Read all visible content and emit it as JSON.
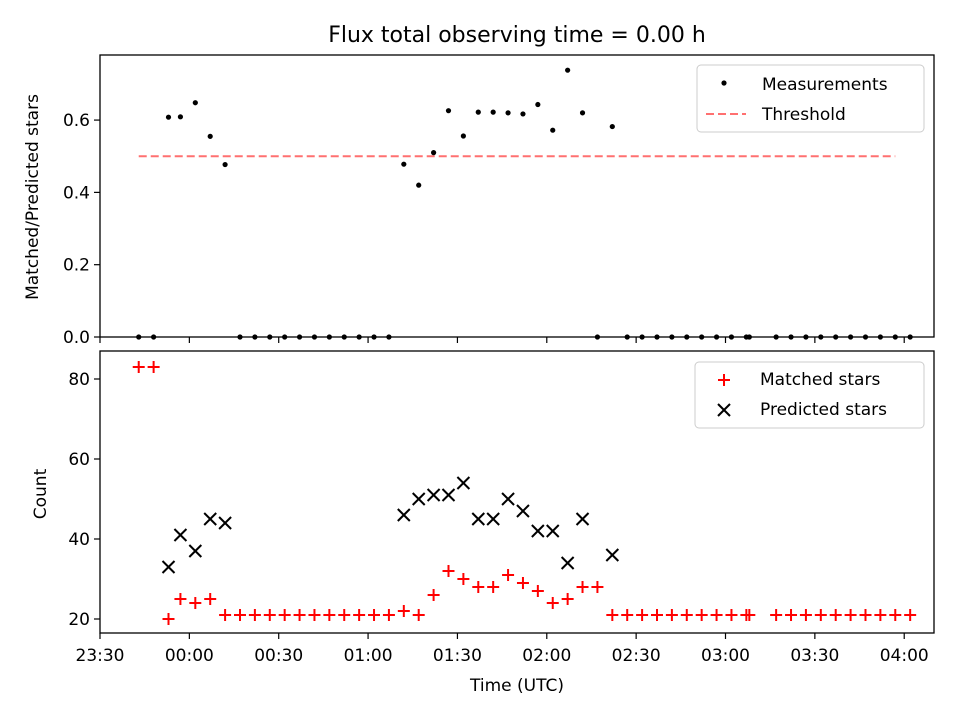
{
  "chart_data": [
    {
      "type": "scatter",
      "title": "Flux total observing time = 0.00 h",
      "xlabel": "",
      "ylabel": "Matched/Predicted stars",
      "xlim_minutes": [
        -30,
        250
      ],
      "ylim": [
        0,
        0.78
      ],
      "yticks": [
        0.0,
        0.2,
        0.4,
        0.6
      ],
      "ytick_labels": [
        "0.0",
        "0.2",
        "0.4",
        "0.6"
      ],
      "xtick_minutes": [
        -30,
        0,
        30,
        60,
        90,
        120,
        150,
        180,
        210,
        240
      ],
      "series": [
        {
          "name": "Measurements",
          "marker": "dot",
          "color": "#000000",
          "x_minutes": [
            -17,
            -12,
            -7,
            -3,
            2,
            7,
            12,
            17,
            22,
            27,
            32,
            37,
            42,
            47,
            52,
            57,
            62,
            67,
            72,
            77,
            82,
            87,
            92,
            97,
            102,
            107,
            112,
            117,
            122,
            127,
            132,
            137,
            142,
            147,
            152,
            157,
            162,
            167,
            172,
            177,
            182,
            187,
            188,
            197,
            202,
            207,
            212,
            217,
            222,
            227,
            232,
            237,
            242
          ],
          "y": [
            0,
            0,
            0.608,
            0.609,
            0.648,
            0.555,
            0.477,
            0,
            0,
            0,
            0,
            0,
            0,
            0,
            0,
            0,
            0,
            0,
            0.478,
            0.42,
            0.51,
            0.626,
            0.556,
            0.622,
            0.622,
            0.62,
            0.617,
            0.643,
            0.572,
            0.738,
            0.62,
            0,
            0.582,
            0,
            0,
            0,
            0,
            0,
            0,
            0,
            0,
            0,
            0,
            0,
            0,
            0,
            0,
            0,
            0,
            0,
            0,
            0,
            0
          ]
        },
        {
          "name": "Threshold",
          "style": "dashed",
          "color": "#ff7070",
          "x_minutes": [
            -17,
            237
          ],
          "y": [
            0.5,
            0.5
          ]
        }
      ]
    },
    {
      "type": "scatter",
      "title": "",
      "xlabel": "Time (UTC)",
      "ylabel": "Count",
      "xlim_minutes": [
        -30,
        250
      ],
      "ylim": [
        16.5,
        87
      ],
      "yticks": [
        20,
        40,
        60,
        80
      ],
      "ytick_labels": [
        "20",
        "40",
        "60",
        "80"
      ],
      "xtick_minutes": [
        -30,
        0,
        30,
        60,
        90,
        120,
        150,
        180,
        210,
        240
      ],
      "xtick_labels": [
        "23:30",
        "00:00",
        "00:30",
        "01:00",
        "01:30",
        "02:00",
        "02:30",
        "03:00",
        "03:30",
        "04:00"
      ],
      "series": [
        {
          "name": "Matched stars",
          "marker": "plus",
          "color": "#ff0000",
          "x_minutes": [
            -17,
            -12,
            -7,
            -3,
            2,
            7,
            12,
            17,
            22,
            27,
            32,
            37,
            42,
            47,
            52,
            57,
            62,
            67,
            72,
            77,
            82,
            87,
            92,
            97,
            102,
            107,
            112,
            117,
            122,
            127,
            132,
            137,
            142,
            147,
            152,
            157,
            162,
            167,
            172,
            177,
            182,
            187,
            188,
            197,
            202,
            207,
            212,
            217,
            222,
            227,
            232,
            237,
            242
          ],
          "y": [
            83,
            83,
            20,
            25,
            24,
            25,
            21,
            21,
            21,
            21,
            21,
            21,
            21,
            21,
            21,
            21,
            21,
            21,
            22,
            21,
            26,
            32,
            30,
            28,
            28,
            31,
            29,
            27,
            24,
            25,
            28,
            28,
            21,
            21,
            21,
            21,
            21,
            21,
            21,
            21,
            21,
            21,
            21,
            21,
            21,
            21,
            21,
            21,
            21,
            21,
            21,
            21,
            21
          ]
        },
        {
          "name": "Predicted stars",
          "marker": "x",
          "color": "#000000",
          "x_minutes": [
            -7,
            -3,
            2,
            7,
            12,
            72,
            77,
            82,
            87,
            92,
            97,
            102,
            107,
            112,
            117,
            122,
            127,
            132,
            142
          ],
          "y": [
            33,
            41,
            37,
            45,
            44,
            46,
            50,
            51,
            51,
            54,
            45,
            45,
            50,
            47,
            42,
            42,
            34,
            45,
            36
          ]
        }
      ]
    }
  ]
}
